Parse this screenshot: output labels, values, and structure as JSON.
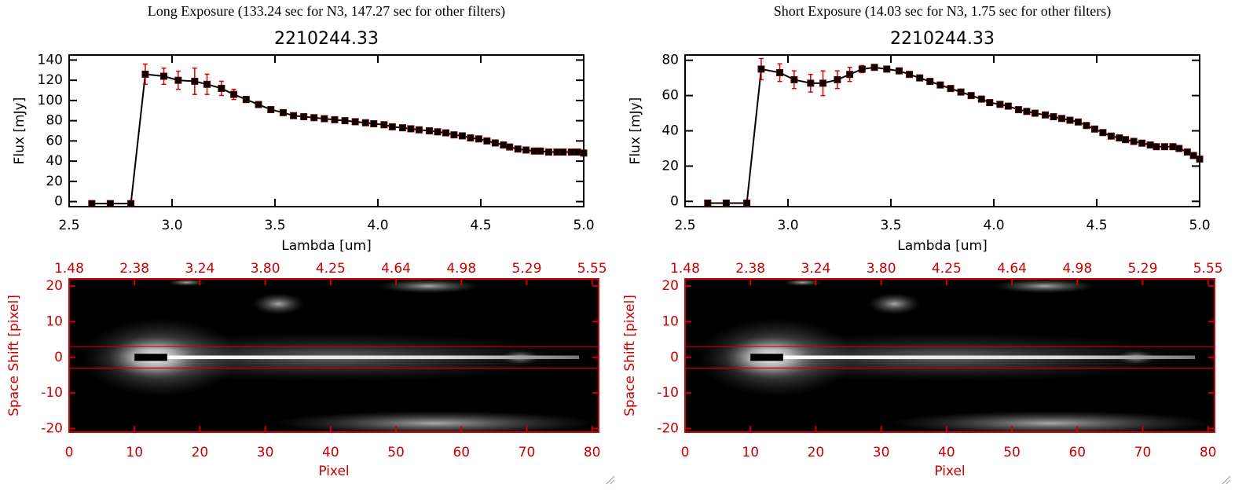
{
  "chart_data": [
    {
      "type": "line",
      "header": "Long Exposure (133.24 sec for N3, 147.27 sec for other filters)",
      "title": "2210244.33",
      "xlabel": "Lambda [um]",
      "ylabel": "Flux [mJy]",
      "xlim": [
        2.5,
        5.0
      ],
      "ylim": [
        -5,
        145
      ],
      "xticks": [
        2.5,
        {
          "value": 3,
          "label": "3.0"
        },
        3.5,
        {
          "value": 4,
          "label": "4.0"
        },
        4.5,
        {
          "value": 5,
          "label": "5.0"
        }
      ],
      "yticks": [
        0,
        20,
        40,
        60,
        80,
        100,
        120,
        140
      ],
      "x": [
        2.61,
        2.7,
        2.8,
        2.87,
        2.96,
        3.03,
        3.11,
        3.17,
        3.24,
        3.3,
        3.36,
        3.42,
        3.48,
        3.54,
        3.59,
        3.64,
        3.69,
        3.74,
        3.79,
        3.84,
        3.89,
        3.94,
        3.98,
        4.03,
        4.07,
        4.12,
        4.16,
        4.2,
        4.25,
        4.29,
        4.33,
        4.37,
        4.41,
        4.45,
        4.49,
        4.53,
        4.57,
        4.61,
        4.64,
        4.68,
        4.72,
        4.76,
        4.79,
        4.83,
        4.87,
        4.9,
        4.94,
        4.97,
        5.0
      ],
      "series": [
        {
          "color": "#000000",
          "error_color": "#dd0000",
          "values": [
            -2,
            -2,
            -2,
            126,
            124,
            120,
            119,
            116,
            112,
            106,
            101,
            96,
            91,
            88,
            85,
            84,
            83,
            82,
            81,
            80,
            79,
            78,
            77,
            76,
            74,
            73,
            72,
            71,
            70,
            69,
            68,
            66,
            65,
            63,
            62,
            60,
            58,
            56,
            54,
            52,
            51,
            50,
            50,
            49,
            49,
            49,
            49,
            49,
            48
          ],
          "errors": [
            0,
            0,
            0,
            10,
            8,
            9,
            13,
            10,
            7,
            5,
            3,
            2,
            1,
            1,
            1,
            1,
            1,
            1,
            1,
            1,
            1,
            1,
            1,
            1,
            1,
            1,
            1,
            1,
            1,
            1,
            1,
            1,
            1,
            1,
            1,
            1,
            1,
            1,
            1,
            1,
            1,
            1,
            1,
            1,
            1,
            1,
            1,
            1,
            1
          ]
        }
      ]
    },
    {
      "type": "image",
      "axis_color": "#cc0000",
      "xlabel": "Pixel",
      "ylabel": "Space Shift [pixel]",
      "xlim": [
        0,
        81
      ],
      "ylim": [
        -21,
        22
      ],
      "xticks": [
        0,
        10,
        20,
        30,
        40,
        50,
        60,
        70,
        80
      ],
      "x2ticks": [
        {
          "value": 0,
          "label": "1.48"
        },
        {
          "value": 10,
          "label": "2.38"
        },
        {
          "value": 20,
          "label": "3.24"
        },
        {
          "value": 30,
          "label": "3.80"
        },
        {
          "value": 40,
          "label": "4.25"
        },
        {
          "value": 50,
          "label": "4.64"
        },
        {
          "value": 60,
          "label": "4.98"
        },
        {
          "value": 70,
          "label": "5.29"
        },
        {
          "value": 80,
          "label": "5.55"
        }
      ],
      "yticks": [
        -20,
        -10,
        0,
        10,
        20
      ],
      "hlines": [
        3,
        -3
      ]
    },
    {
      "type": "line",
      "header": "Short Exposure (14.03 sec for N3, 1.75 sec for other filters)",
      "title": "2210244.33",
      "xlabel": "Lambda [um]",
      "ylabel": "Flux [mJy]",
      "xlim": [
        2.5,
        5.0
      ],
      "ylim": [
        -3,
        83
      ],
      "xticks": [
        2.5,
        {
          "value": 3,
          "label": "3.0"
        },
        3.5,
        {
          "value": 4,
          "label": "4.0"
        },
        4.5,
        {
          "value": 5,
          "label": "5.0"
        }
      ],
      "yticks": [
        0,
        20,
        40,
        60,
        80
      ],
      "x": [
        2.61,
        2.7,
        2.8,
        2.87,
        2.96,
        3.03,
        3.11,
        3.17,
        3.24,
        3.3,
        3.36,
        3.42,
        3.48,
        3.54,
        3.59,
        3.64,
        3.69,
        3.74,
        3.79,
        3.84,
        3.89,
        3.94,
        3.98,
        4.03,
        4.07,
        4.12,
        4.16,
        4.2,
        4.25,
        4.29,
        4.33,
        4.37,
        4.41,
        4.45,
        4.49,
        4.53,
        4.57,
        4.61,
        4.64,
        4.68,
        4.72,
        4.76,
        4.79,
        4.83,
        4.87,
        4.9,
        4.94,
        4.97,
        5.0
      ],
      "series": [
        {
          "color": "#000000",
          "error_color": "#dd0000",
          "values": [
            -1,
            -1,
            -1,
            75,
            73,
            69,
            67,
            67,
            69,
            72,
            75,
            76,
            75,
            74,
            72,
            70,
            68,
            66,
            64,
            62,
            60,
            58,
            56,
            55,
            54,
            52,
            51,
            50,
            49,
            48,
            47,
            46,
            45,
            43,
            41,
            39,
            37,
            36,
            35,
            34,
            33,
            32,
            31,
            31,
            31,
            30,
            28,
            26,
            24
          ],
          "errors": [
            0,
            0,
            0,
            6,
            5,
            5,
            5,
            7,
            5,
            4,
            2,
            1,
            1,
            1,
            1,
            1,
            1,
            1,
            1,
            1,
            1,
            1,
            1,
            1,
            1,
            1,
            1,
            1,
            1,
            1,
            1,
            1,
            1,
            1,
            1,
            1,
            1,
            1,
            1,
            1,
            1,
            1,
            1,
            1,
            1,
            1,
            1,
            1,
            1
          ]
        }
      ]
    },
    {
      "type": "image",
      "axis_color": "#cc0000",
      "xlabel": "Pixel",
      "ylabel": "Space Shift [pixel]",
      "xlim": [
        0,
        81
      ],
      "ylim": [
        -21,
        22
      ],
      "xticks": [
        0,
        10,
        20,
        30,
        40,
        50,
        60,
        70,
        80
      ],
      "x2ticks": [
        {
          "value": 0,
          "label": "1.48"
        },
        {
          "value": 10,
          "label": "2.38"
        },
        {
          "value": 20,
          "label": "3.24"
        },
        {
          "value": 30,
          "label": "3.80"
        },
        {
          "value": 40,
          "label": "4.25"
        },
        {
          "value": 50,
          "label": "4.64"
        },
        {
          "value": 60,
          "label": "4.98"
        },
        {
          "value": 70,
          "label": "5.29"
        },
        {
          "value": 80,
          "label": "5.55"
        }
      ],
      "yticks": [
        -20,
        -10,
        0,
        10,
        20
      ],
      "hlines": [
        3,
        -3
      ]
    }
  ]
}
